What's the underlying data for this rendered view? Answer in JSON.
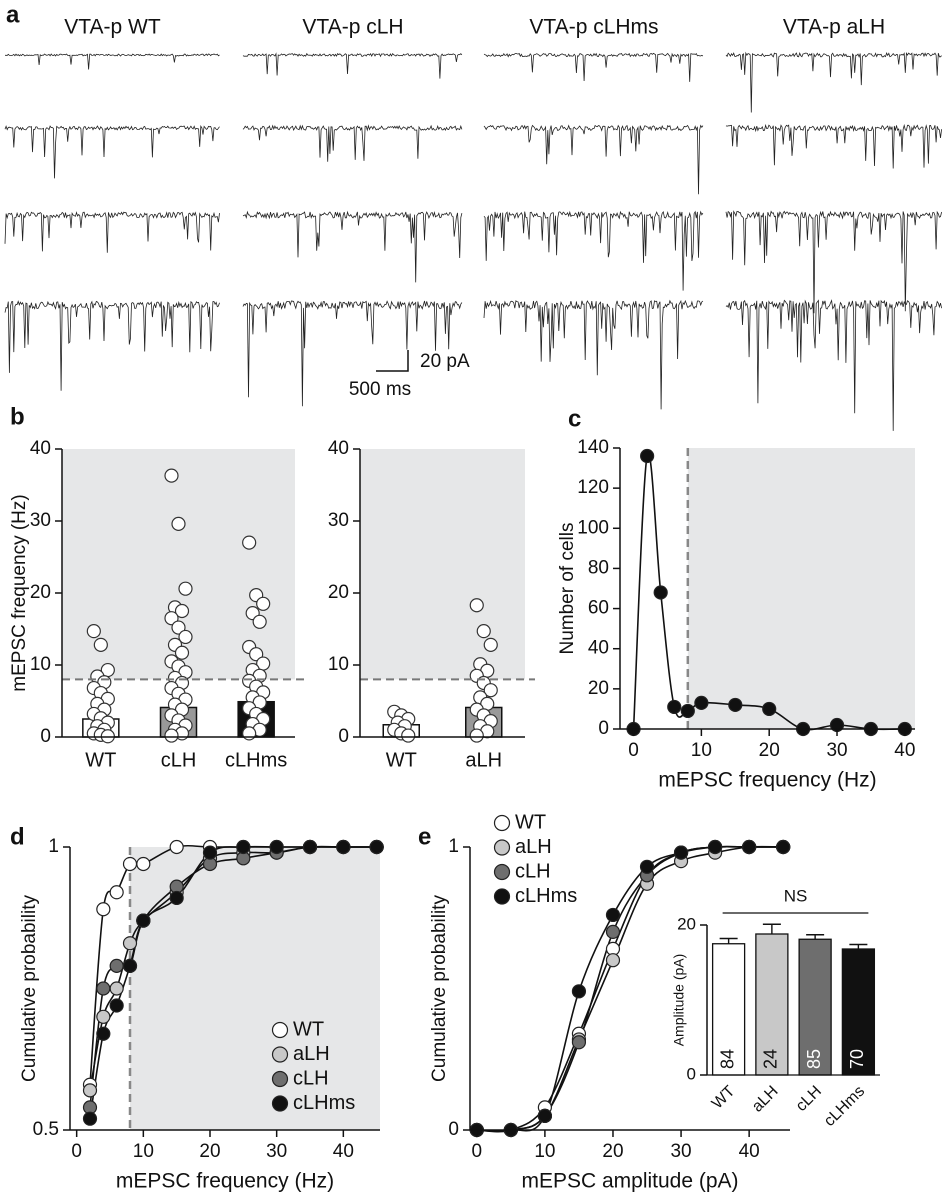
{
  "chart_data": [
    {
      "type": "traces",
      "panel": "a",
      "titles": [
        "VTA-p WT",
        "VTA-p cLH",
        "VTA-p cLHms",
        "VTA-p aLH"
      ],
      "scale_bar": {
        "y_label": "20 pA",
        "x_label": "500 ms"
      }
    },
    {
      "type": "strip_bar",
      "panel": "b",
      "ylabel": "mEPSC frequency (Hz)",
      "categories": [
        "WT",
        "cLH",
        "cLHms"
      ],
      "values": [
        2.5,
        4.1,
        4.9
      ],
      "errors": [
        0.3,
        0.7,
        0.5
      ],
      "colors": [
        "#ffffff",
        "#999999",
        "#111111"
      ],
      "points": [
        [
          14.7,
          12.8,
          9.3,
          8.4,
          7.6,
          6.8,
          6.1,
          5.3,
          4.6,
          3.8,
          3.2,
          2.6,
          2.0,
          1.5,
          1.0,
          0.5,
          0.3,
          0.1
        ],
        [
          36.3,
          29.6,
          20.6,
          18.0,
          17.5,
          16.5,
          15.2,
          13.9,
          12.8,
          11.7,
          10.5,
          9.8,
          9.0,
          8.2,
          7.5,
          6.8,
          6.0,
          5.2,
          4.5,
          3.8,
          3.0,
          2.3,
          1.6,
          1.0,
          0.5,
          0.2
        ],
        [
          27.0,
          19.7,
          18.5,
          17.2,
          16.0,
          12.5,
          11.5,
          10.2,
          9.3,
          8.5,
          7.8,
          7.0,
          6.2,
          5.5,
          4.8,
          4.0,
          3.2,
          2.5,
          1.8,
          1.0,
          0.5
        ]
      ],
      "threshold": 8,
      "ylim": [
        0,
        40
      ],
      "yticks": [
        0,
        10,
        20,
        30,
        40
      ]
    },
    {
      "type": "strip_bar",
      "categories": [
        "WT",
        "aLH"
      ],
      "values": [
        1.7,
        4.1
      ],
      "errors": [
        0.2,
        0.6
      ],
      "colors": [
        "#ffffff",
        "#999999"
      ],
      "points": [
        [
          3.5,
          3.0,
          2.5,
          2.0,
          1.5,
          1.0,
          0.5,
          0.2
        ],
        [
          18.3,
          14.7,
          12.8,
          10.1,
          9.2,
          8.5,
          7.5,
          6.5,
          5.5,
          4.6,
          3.8,
          3.0,
          2.2,
          1.5,
          0.8,
          0.2
        ]
      ],
      "threshold": 8,
      "ylim": [
        0,
        40
      ],
      "yticks": [
        0,
        10,
        20,
        30,
        40
      ]
    },
    {
      "type": "line",
      "panel": "c",
      "ylabel": "Number of cells",
      "xlabel": "mEPSC frequency (Hz)",
      "x": [
        0,
        2,
        4,
        6,
        8,
        10,
        15,
        20,
        25,
        30,
        35,
        40
      ],
      "values": [
        0,
        136,
        68,
        11,
        9,
        13,
        12,
        10,
        0,
        2,
        0,
        0
      ],
      "color": "#111111",
      "threshold": 8,
      "xlim": [
        -2,
        41.5
      ],
      "xticks": [
        0,
        10,
        20,
        30,
        40
      ],
      "ylim": [
        0,
        140
      ],
      "yticks": [
        0,
        20,
        40,
        60,
        80,
        100,
        120,
        140
      ]
    },
    {
      "type": "line",
      "panel": "d",
      "ylabel": "Cumulative probability",
      "xlabel": "mEPSC frequency (Hz)",
      "x": [
        2,
        4,
        6,
        8,
        10,
        15,
        20,
        25,
        30,
        35,
        40,
        45
      ],
      "series": [
        {
          "name": "WT",
          "color": "#ffffff",
          "values": [
            0.58,
            0.89,
            0.92,
            0.97,
            0.97,
            1,
            1,
            1,
            1,
            1,
            1,
            1
          ]
        },
        {
          "name": "aLH",
          "color": "#c8c8c8",
          "values": [
            0.57,
            0.7,
            0.75,
            0.83,
            0.87,
            0.92,
            0.98,
            0.99,
            0.99,
            1,
            1,
            1
          ]
        },
        {
          "name": "cLH",
          "color": "#6e6e6e",
          "values": [
            0.54,
            0.75,
            0.79,
            0.79,
            0.87,
            0.93,
            0.97,
            0.98,
            0.99,
            1,
            1,
            1
          ]
        },
        {
          "name": "cLHms",
          "color": "#111111",
          "values": [
            0.52,
            0.67,
            0.72,
            0.79,
            0.87,
            0.91,
            0.99,
            1,
            1,
            1,
            1,
            1
          ]
        }
      ],
      "threshold": 8,
      "legend": "lower right",
      "xlim": [
        -1,
        45.5
      ],
      "xticks": [
        0,
        10,
        20,
        30,
        40
      ],
      "ylim": [
        0.5,
        1
      ],
      "yticks": [
        0.5,
        1
      ]
    },
    {
      "type": "line",
      "panel": "e",
      "ylabel": "Cumulative probability",
      "xlabel": "mEPSC amplitude (pA)",
      "x": [
        0,
        5,
        10,
        15,
        20,
        25,
        30,
        35,
        40,
        45
      ],
      "series": [
        {
          "name": "WT",
          "color": "#ffffff",
          "values": [
            0,
            0,
            0.08,
            0.34,
            0.64,
            0.9,
            0.98,
            1,
            1,
            1
          ]
        },
        {
          "name": "aLH",
          "color": "#c8c8c8",
          "values": [
            0,
            0,
            0.05,
            0.32,
            0.6,
            0.87,
            0.95,
            0.98,
            1,
            1
          ]
        },
        {
          "name": "cLH",
          "color": "#6e6e6e",
          "values": [
            0,
            0,
            0.05,
            0.31,
            0.7,
            0.9,
            0.98,
            1,
            1,
            1
          ]
        },
        {
          "name": "cLHms",
          "color": "#111111",
          "values": [
            0,
            0,
            0.05,
            0.49,
            0.76,
            0.93,
            0.98,
            1,
            1,
            1
          ]
        }
      ],
      "legend": "upper left",
      "xlim": [
        -1,
        46
      ],
      "xticks": [
        0,
        10,
        20,
        30,
        40
      ],
      "ylim": [
        0,
        1
      ],
      "yticks": [
        0,
        1
      ]
    },
    {
      "type": "bar",
      "ylabel": "Amplitude (pA)",
      "categories": [
        "WT",
        "aLH",
        "cLH",
        "cLHms"
      ],
      "values": [
        17.5,
        18.8,
        18.1,
        16.8
      ],
      "errors": [
        0.7,
        1.3,
        0.6,
        0.6
      ],
      "colors": [
        "#ffffff",
        "#c8c8c8",
        "#6e6e6e",
        "#111111"
      ],
      "n": [
        84,
        24,
        85,
        70
      ],
      "annotation": "NS",
      "ylim": [
        0,
        20
      ],
      "yticks": [
        0,
        20
      ]
    }
  ]
}
